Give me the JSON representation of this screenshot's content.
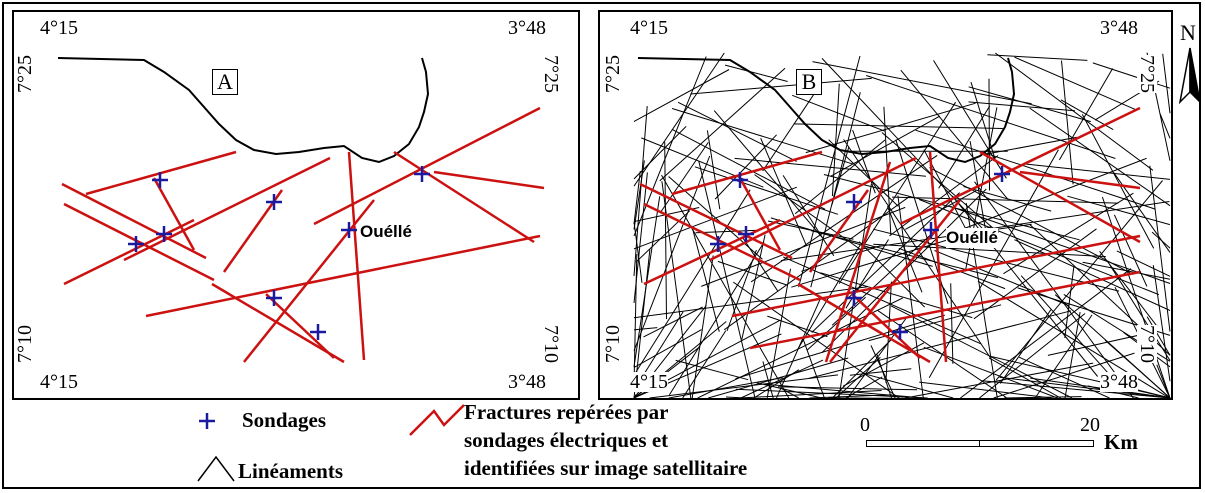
{
  "colors": {
    "fracture": "#cc1111",
    "sondage": "#1a1aa0",
    "coast": "#000000",
    "lineament": "#000000"
  },
  "panels": {
    "A": {
      "label": "A",
      "coords": {
        "top_left": "4°15",
        "top_right": "3°48",
        "bottom_left": "4°15",
        "bottom_right": "3°48",
        "left_top": "7°25",
        "left_bottom": "7°10",
        "right_top": "7°25",
        "right_bottom": "7°10"
      },
      "town": "Ouéllé"
    },
    "B": {
      "label": "B",
      "coords": {
        "top_left": "4°15",
        "top_right": "3°48",
        "bottom_left": "4°15",
        "bottom_right": "3°48",
        "left_top": "7°25",
        "left_bottom": "7°10",
        "right_top": "7°25",
        "right_bottom": "7°10"
      },
      "town": "Ouéllé"
    }
  },
  "north_label": "N",
  "north_icon": "north-arrow-icon",
  "legend": {
    "sondages": "Sondages",
    "fractures_line1": "Fractures repérées par",
    "fractures_line2": "sondages électriques et",
    "fractures_line3": "identifiées sur image satellitaire",
    "lineaments": "Linéaments",
    "scale_start": "0",
    "scale_end": "20",
    "scale_unit": "Km"
  }
}
